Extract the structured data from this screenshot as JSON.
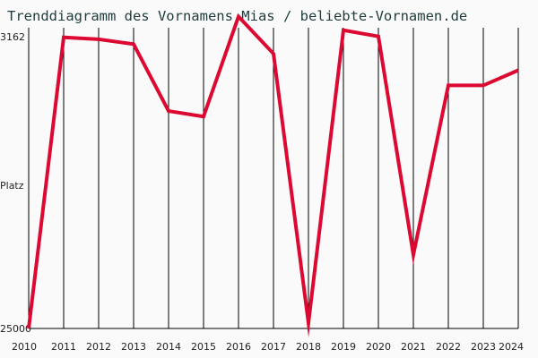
{
  "chart_data": {
    "type": "line",
    "title": "Trenddiagramm des Vornamens Mias / beliebte-Vornamen.de",
    "ylabel": "Platz",
    "y_top_label": "3162",
    "y_bottom_label": "25000",
    "ylim": [
      25000,
      3162
    ],
    "x": [
      "2010",
      "2011",
      "2012",
      "2013",
      "2014",
      "2015",
      "2016",
      "2017",
      "2018",
      "2019",
      "2020",
      "2021",
      "2022",
      "2023",
      "2024"
    ],
    "series": [
      {
        "values": [
          25000,
          3860,
          3997,
          4350,
          9210,
          9610,
          2350,
          5050,
          24600,
          3340,
          3790,
          19650,
          7350,
          7350,
          6250
        ]
      }
    ],
    "series_color": "#dc0a32",
    "grid": "vertical",
    "inverted_axis": true
  }
}
